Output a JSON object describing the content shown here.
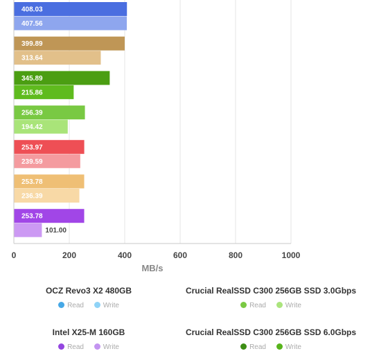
{
  "chart_data": {
    "type": "bar",
    "orientation": "horizontal",
    "xlabel": "MB/s",
    "xlim": [
      0,
      1000
    ],
    "xticks": [
      0,
      200,
      400,
      600,
      800,
      1000
    ],
    "grid": true,
    "bars": [
      {
        "value": 408.03,
        "label": "408.03",
        "color": "#4a6ee0"
      },
      {
        "value": 407.56,
        "label": "407.56",
        "color": "#8ea6ee"
      },
      {
        "value": 399.89,
        "label": "399.89",
        "color": "#bf9656"
      },
      {
        "value": 313.64,
        "label": "313.64",
        "color": "#e2c08a"
      },
      {
        "value": 345.89,
        "label": "345.89",
        "color": "#4b9e12"
      },
      {
        "value": 215.86,
        "label": "215.86",
        "color": "#5fbb1e"
      },
      {
        "value": 256.39,
        "label": "256.39",
        "color": "#79c943"
      },
      {
        "value": 194.42,
        "label": "194.42",
        "color": "#a9e479"
      },
      {
        "value": 253.97,
        "label": "253.97",
        "color": "#ee4f55"
      },
      {
        "value": 239.59,
        "label": "239.59",
        "color": "#f49b9f"
      },
      {
        "value": 253.78,
        "label": "253.78",
        "color": "#efbf75"
      },
      {
        "value": 236.39,
        "label": "236.39",
        "color": "#f8d9a6"
      },
      {
        "value": 253.78,
        "label": "253.78",
        "color": "#a146e7"
      },
      {
        "value": 101.0,
        "label": "101.00",
        "color": "#cc99f3"
      }
    ]
  },
  "legend": [
    {
      "title": "OCZ Revo3 X2 480GB",
      "read_label": "Read",
      "write_label": "Write",
      "read_color": "#46a8e6",
      "write_color": "#8fd3f7"
    },
    {
      "title": "Crucial RealSSD C300 256GB SSD 3.0Gbps",
      "read_label": "Read",
      "write_label": "Write",
      "read_color": "#7ac943",
      "write_color": "#abe47d"
    },
    {
      "title": "Intel X25-M 160GB",
      "read_label": "Read",
      "write_label": "Write",
      "read_color": "#9446e0",
      "write_color": "#c394f0"
    },
    {
      "title": "Crucial RealSSD C300 256GB SSD 6.0Gbps",
      "read_label": "Read",
      "write_label": "Write",
      "read_color": "#3d8e14",
      "write_color": "#58b41c"
    }
  ]
}
